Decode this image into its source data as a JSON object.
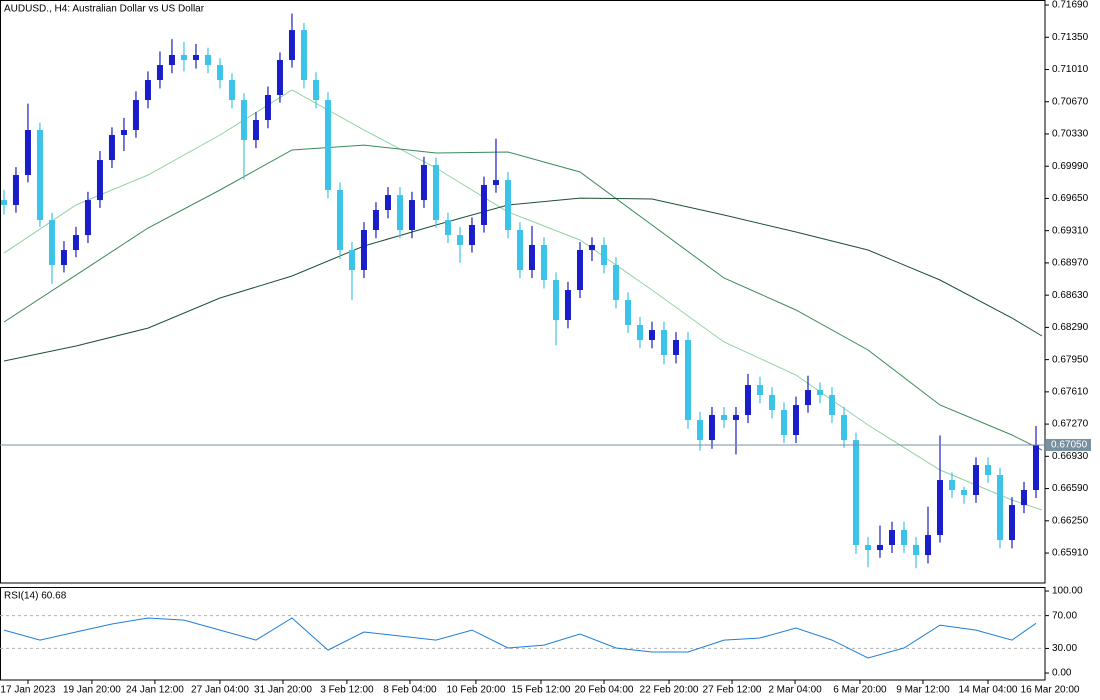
{
  "chart_data": [
    {
      "type": "candlestick",
      "title": "AUDUSD., H4:  Australian Dollar vs US Dollar",
      "xlim": [
        -0.33,
        86.75
      ],
      "ylim": [
        0.65594,
        0.71743
      ],
      "yticks": [
        {
          "value": 0.7169,
          "label": "0.71690"
        },
        {
          "value": 0.7135,
          "label": "0.71350"
        },
        {
          "value": 0.7101,
          "label": "0.71010"
        },
        {
          "value": 0.7067,
          "label": "0.70670"
        },
        {
          "value": 0.7033,
          "label": "0.70330"
        },
        {
          "value": 0.6999,
          "label": "0.69990"
        },
        {
          "value": 0.6965,
          "label": "0.69650"
        },
        {
          "value": 0.6931,
          "label": "0.69310"
        },
        {
          "value": 0.6897,
          "label": "0.68970"
        },
        {
          "value": 0.6863,
          "label": "0.68630"
        },
        {
          "value": 0.6829,
          "label": "0.68290"
        },
        {
          "value": 0.6795,
          "label": "0.67950"
        },
        {
          "value": 0.6761,
          "label": "0.67610"
        },
        {
          "value": 0.6727,
          "label": "0.67270"
        },
        {
          "value": 0.6693,
          "label": "0.66930"
        },
        {
          "value": 0.6659,
          "label": "0.66590"
        },
        {
          "value": 0.6625,
          "label": "0.66250"
        },
        {
          "value": 0.6591,
          "label": "0.65910"
        }
      ],
      "xticks": [
        {
          "value": 2,
          "label": "17 Jan 2023"
        },
        {
          "value": 7.33,
          "label": "19 Jan 20:00"
        },
        {
          "value": 12.58,
          "label": "24 Jan 12:00"
        },
        {
          "value": 18,
          "label": "27 Jan 04:00"
        },
        {
          "value": 23.25,
          "label": "31 Jan 20:00"
        },
        {
          "value": 28.58,
          "label": "3 Feb 12:00"
        },
        {
          "value": 33.83,
          "label": "8 Feb 04:00"
        },
        {
          "value": 39.33,
          "label": "10 Feb 20:00"
        },
        {
          "value": 44.75,
          "label": "15 Feb 12:00"
        },
        {
          "value": 50,
          "label": "20 Feb 04:00"
        },
        {
          "value": 55.42,
          "label": "22 Feb 20:00"
        },
        {
          "value": 60.67,
          "label": "27 Feb 12:00"
        },
        {
          "value": 65.92,
          "label": "2 Mar 04:00"
        },
        {
          "value": 71.33,
          "label": "6 Mar 20:00"
        },
        {
          "value": 76.58,
          "label": "9 Mar 12:00"
        },
        {
          "value": 82,
          "label": "14 Mar 04:00"
        },
        {
          "value": 87.17,
          "label": "16 Mar 20:00"
        }
      ],
      "up_color": "#1a1ec8",
      "down_color": "#3cc4e8",
      "x": [
        0,
        1,
        2,
        3,
        4,
        5,
        6,
        7,
        8,
        9,
        10,
        11,
        12,
        13,
        14,
        15,
        16,
        17,
        18,
        19,
        20,
        21,
        22,
        23,
        24,
        25,
        26,
        27,
        28,
        29,
        30,
        31,
        32,
        33,
        34,
        35,
        36,
        37,
        38,
        39,
        40,
        41,
        42,
        43,
        44,
        45,
        46,
        47,
        48,
        49,
        50,
        51,
        52,
        53,
        54,
        55,
        56,
        57,
        58,
        59,
        60,
        61,
        62,
        63,
        64,
        65,
        66,
        67,
        68,
        69,
        70,
        71,
        72,
        73,
        74,
        75,
        76,
        77,
        78,
        79,
        80,
        81,
        82,
        83,
        84,
        85,
        86
      ],
      "open": [
        0.69633,
        0.69581,
        0.69897,
        0.70372,
        0.69422,
        0.68948,
        0.69106,
        0.69264,
        0.69633,
        0.70055,
        0.70319,
        0.70372,
        0.70688,
        0.70899,
        0.71057,
        0.71163,
        0.7111,
        0.71163,
        0.71057,
        0.70899,
        0.70688,
        0.70266,
        0.70477,
        0.70741,
        0.7111,
        0.71426,
        0.70899,
        0.70688,
        0.69739,
        0.69106,
        0.68895,
        0.69317,
        0.69528,
        0.69686,
        0.69317,
        0.69633,
        0.70003,
        0.69422,
        0.69264,
        0.69159,
        0.6937,
        0.69792,
        0.69844,
        0.69317,
        0.68895,
        0.69159,
        0.6879,
        0.68368,
        0.68684,
        0.69106,
        0.69159,
        0.68948,
        0.68579,
        0.68315,
        0.68157,
        0.68262,
        0.67999,
        0.68157,
        0.67313,
        0.67102,
        0.67366,
        0.67313,
        0.67366,
        0.67682,
        0.67577,
        0.67419,
        0.67155,
        0.67471,
        0.67629,
        0.67577,
        0.67366,
        0.67102,
        0.65995,
        0.65942,
        0.65995,
        0.66153,
        0.65995,
        0.65889,
        0.661,
        0.6668,
        0.66575,
        0.66522,
        0.66838,
        0.66733,
        0.66047,
        0.66416,
        0.66575
      ],
      "high": [
        0.6974,
        0.6998,
        0.7065,
        0.7045,
        0.695,
        0.692,
        0.6935,
        0.6972,
        0.7015,
        0.704,
        0.705,
        0.7078,
        0.7099,
        0.712,
        0.7133,
        0.713,
        0.7128,
        0.7124,
        0.7113,
        0.7097,
        0.7076,
        0.7056,
        0.7083,
        0.7119,
        0.716,
        0.715,
        0.7098,
        0.7077,
        0.6982,
        0.6919,
        0.694,
        0.6961,
        0.6977,
        0.6977,
        0.6972,
        0.7009,
        0.7008,
        0.695,
        0.6935,
        0.6945,
        0.6988,
        0.7028,
        0.6993,
        0.694,
        0.6936,
        0.6924,
        0.6887,
        0.6877,
        0.6919,
        0.6924,
        0.6924,
        0.6903,
        0.6866,
        0.684,
        0.6835,
        0.6835,
        0.6824,
        0.6824,
        0.674,
        0.6745,
        0.6745,
        0.6745,
        0.678,
        0.6777,
        0.6766,
        0.675,
        0.6756,
        0.6778,
        0.6771,
        0.6766,
        0.6745,
        0.6718,
        0.6608,
        0.662,
        0.6624,
        0.6624,
        0.6608,
        0.664,
        0.6715,
        0.6676,
        0.6661,
        0.6692,
        0.6692,
        0.6681,
        0.665,
        0.6666,
        0.6725
      ],
      "low": [
        0.6948,
        0.695,
        0.6982,
        0.6935,
        0.6875,
        0.6887,
        0.6903,
        0.6918,
        0.6955,
        0.6997,
        0.7015,
        0.7029,
        0.706,
        0.7081,
        0.7097,
        0.7099,
        0.7102,
        0.7097,
        0.7081,
        0.706,
        0.6985,
        0.7018,
        0.7039,
        0.7066,
        0.7103,
        0.7081,
        0.706,
        0.6965,
        0.6901,
        0.6858,
        0.6881,
        0.6923,
        0.6944,
        0.6923,
        0.6923,
        0.6955,
        0.6934,
        0.6918,
        0.6897,
        0.6908,
        0.6929,
        0.6971,
        0.6923,
        0.6881,
        0.6881,
        0.687,
        0.681,
        0.6828,
        0.686,
        0.6899,
        0.6886,
        0.6849,
        0.6823,
        0.6807,
        0.6807,
        0.679,
        0.6791,
        0.6722,
        0.6699,
        0.6701,
        0.6723,
        0.6695,
        0.6728,
        0.6749,
        0.6733,
        0.6707,
        0.6707,
        0.6739,
        0.6749,
        0.6728,
        0.6702,
        0.659,
        0.6576,
        0.6586,
        0.6591,
        0.6591,
        0.6575,
        0.658,
        0.6602,
        0.6649,
        0.6643,
        0.6644,
        0.6665,
        0.6596,
        0.6596,
        0.6633,
        0.6649
      ],
      "close": [
        0.69581,
        0.69897,
        0.70372,
        0.69422,
        0.68948,
        0.69106,
        0.69264,
        0.69633,
        0.70055,
        0.70319,
        0.70372,
        0.70688,
        0.70899,
        0.71057,
        0.71163,
        0.7111,
        0.71163,
        0.71057,
        0.70899,
        0.70688,
        0.70266,
        0.70477,
        0.70741,
        0.7111,
        0.71426,
        0.70899,
        0.70688,
        0.69739,
        0.69106,
        0.68895,
        0.69317,
        0.69528,
        0.69686,
        0.69317,
        0.69633,
        0.70003,
        0.69422,
        0.69264,
        0.69159,
        0.6937,
        0.69792,
        0.69844,
        0.69317,
        0.68895,
        0.69159,
        0.6879,
        0.68368,
        0.68684,
        0.69106,
        0.69159,
        0.68948,
        0.68579,
        0.68315,
        0.68157,
        0.68262,
        0.67999,
        0.68157,
        0.67313,
        0.67102,
        0.67366,
        0.67313,
        0.67366,
        0.67682,
        0.67577,
        0.67419,
        0.67155,
        0.67471,
        0.67629,
        0.67577,
        0.67366,
        0.67102,
        0.65995,
        0.65942,
        0.65995,
        0.66153,
        0.65995,
        0.65889,
        0.661,
        0.6668,
        0.66575,
        0.66522,
        0.66838,
        0.66733,
        0.66047,
        0.66416,
        0.66575,
        0.6705
      ],
      "series": [
        {
          "color": "#90d4a0",
          "x": [
            0,
            6,
            12,
            18,
            24,
            30,
            36,
            42,
            48,
            54,
            60,
            66,
            72,
            78,
            84,
            86.5
          ],
          "values": [
            0.69074,
            0.69581,
            0.69897,
            0.70319,
            0.70794,
            0.70372,
            0.69971,
            0.69507,
            0.69212,
            0.68684,
            0.68136,
            0.67788,
            0.6726,
            0.66786,
            0.66469,
            0.66364
          ]
        },
        {
          "color": "#3a8a58",
          "x": [
            0,
            6,
            12,
            18,
            24,
            30,
            36,
            42,
            48,
            54,
            60,
            66,
            72,
            78,
            84,
            86.5
          ],
          "values": [
            0.68347,
            0.68842,
            0.69338,
            0.69739,
            0.70161,
            0.70213,
            0.70129,
            0.7014,
            0.69929,
            0.6937,
            0.68811,
            0.68473,
            0.68051,
            0.67471,
            0.67155,
            0.66997
          ]
        },
        {
          "color": "#1c5232",
          "x": [
            0,
            6,
            12,
            18,
            24,
            30,
            36,
            42,
            48,
            54,
            60,
            66,
            72,
            78,
            84,
            86.5
          ],
          "values": [
            0.67935,
            0.68094,
            0.68283,
            0.686,
            0.68832,
            0.69148,
            0.6937,
            0.69581,
            0.69654,
            0.69644,
            0.69475,
            0.69296,
            0.69106,
            0.6879,
            0.68389,
            0.68199
          ]
        }
      ],
      "current_price": {
        "value": 0.6705,
        "label": "0.67050"
      },
      "current_color": "#7890a0"
    },
    {
      "type": "line",
      "title": "RSI(14) 60.68",
      "xlim": [
        -0.33,
        86.75
      ],
      "ylim": [
        -8.5,
        104.9
      ],
      "yticks": [
        {
          "value": 100,
          "label": "100.00"
        },
        {
          "value": 70,
          "label": "70.00"
        },
        {
          "value": 30,
          "label": "30.00"
        },
        {
          "value": 0,
          "label": "0.00"
        }
      ],
      "x": [
        0,
        3,
        6,
        9,
        12,
        15,
        18,
        21,
        24,
        27,
        30,
        33,
        36,
        39,
        42,
        45,
        48,
        51,
        54,
        57,
        60,
        63,
        66,
        69,
        72,
        75,
        78,
        81,
        84,
        86
      ],
      "values": [
        52.4,
        40.2,
        50.0,
        59.8,
        67.1,
        64.6,
        52.4,
        40.2,
        67.1,
        28.0,
        50.0,
        45.1,
        40.2,
        52.4,
        30.5,
        34.1,
        47.6,
        30.5,
        25.6,
        25.6,
        40.2,
        42.7,
        54.9,
        40.2,
        18.3,
        30.5,
        58.5,
        52.4,
        40.2,
        60.68
      ],
      "color": "#1e7fd6"
    }
  ]
}
